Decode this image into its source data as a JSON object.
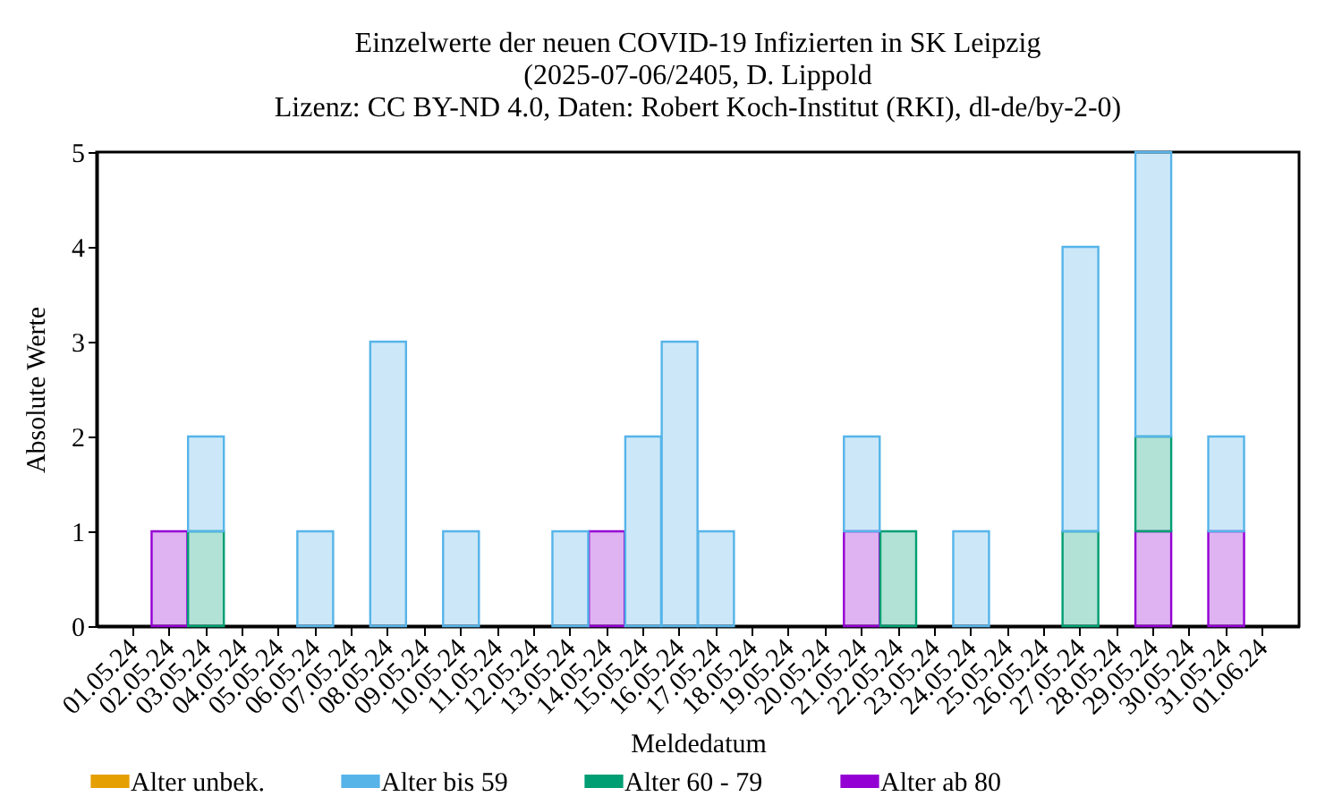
{
  "chart_data": {
    "type": "bar",
    "title": "Einzelwerte der neuen COVID-19 Infizierten in SK Leipzig\n(2025-07-06/2405, D. Lippold\nLizenz: CC BY-ND 4.0, Daten: Robert Koch-Institut (RKI), dl-de/by-2-0)",
    "xlabel": "Meldedatum",
    "ylabel": "Absolute Werte",
    "categories": [
      "01.05.24",
      "02.05.24",
      "03.05.24",
      "04.05.24",
      "05.05.24",
      "06.05.24",
      "07.05.24",
      "08.05.24",
      "09.05.24",
      "10.05.24",
      "11.05.24",
      "12.05.24",
      "13.05.24",
      "14.05.24",
      "15.05.24",
      "16.05.24",
      "17.05.24",
      "18.05.24",
      "19.05.24",
      "20.05.24",
      "21.05.24",
      "22.05.24",
      "23.05.24",
      "24.05.24",
      "25.05.24",
      "26.05.24",
      "27.05.24",
      "28.05.24",
      "29.05.24",
      "30.05.24",
      "31.05.24",
      "01.06.24"
    ],
    "stacked": true,
    "series": [
      {
        "name": "Alter ab 80",
        "color": "#9400d3",
        "values": [
          0,
          1,
          0,
          0,
          0,
          0,
          0,
          0,
          0,
          0,
          0,
          0,
          0,
          1,
          0,
          0,
          0,
          0,
          0,
          0,
          1,
          0,
          0,
          0,
          0,
          0,
          0,
          0,
          1,
          0,
          1,
          0
        ]
      },
      {
        "name": "Alter 60 - 79",
        "color": "#009e73",
        "values": [
          0,
          0,
          1,
          0,
          0,
          0,
          0,
          0,
          0,
          0,
          0,
          0,
          0,
          0,
          0,
          0,
          0,
          0,
          0,
          0,
          0,
          1,
          0,
          0,
          0,
          0,
          1,
          0,
          1,
          0,
          0,
          0
        ]
      },
      {
        "name": "Alter bis 59",
        "color": "#56b4e9",
        "values": [
          0,
          0,
          1,
          0,
          0,
          1,
          0,
          3,
          0,
          1,
          0,
          0,
          1,
          0,
          2,
          3,
          1,
          0,
          0,
          0,
          1,
          0,
          0,
          1,
          0,
          0,
          3,
          0,
          3,
          0,
          1,
          0
        ]
      },
      {
        "name": "Alter unbek.",
        "color": "#e69f00",
        "values": [
          0,
          0,
          0,
          0,
          0,
          0,
          0,
          0,
          0,
          0,
          0,
          0,
          0,
          0,
          0,
          0,
          0,
          0,
          0,
          0,
          0,
          0,
          0,
          0,
          0,
          0,
          0,
          0,
          0,
          0,
          0,
          0
        ]
      }
    ],
    "ylim": [
      0,
      5
    ],
    "yticks": [
      0,
      1,
      2,
      3,
      4,
      5
    ],
    "grid": false,
    "legend": "bottom"
  }
}
